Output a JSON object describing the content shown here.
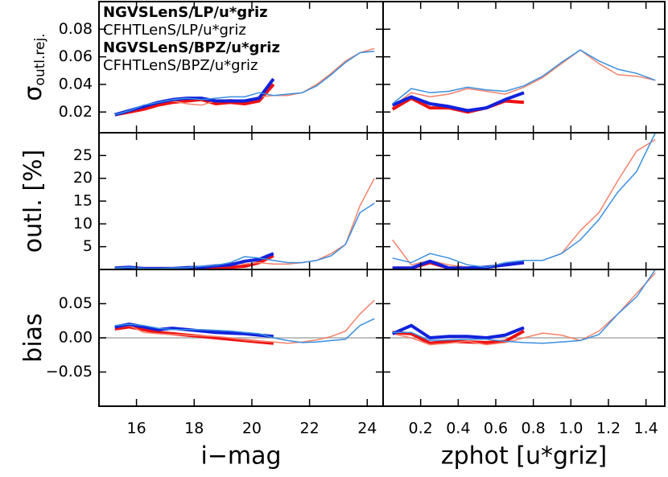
{
  "chart_data": [
    {
      "type": "line",
      "ylabel": "σ",
      "ylabel_sub": "outl.rej.",
      "legend": "upper left",
      "xlim": [
        14.7,
        24.55
      ],
      "xticks": [
        16,
        18,
        20,
        22,
        24
      ],
      "ylim": [
        0.005,
        0.1
      ],
      "yticks": [
        0.02,
        0.04,
        0.06,
        0.08
      ],
      "show_xtick_labels": false,
      "show_ytick_labels": true,
      "series": [
        {
          "name": "NGVSLenS/LP/u*griz",
          "color": "#ee1111",
          "linewidth": 4,
          "bold": true,
          "x": [
            15.25,
            15.75,
            16.25,
            16.75,
            17.25,
            17.75,
            18.25,
            18.75,
            19.25,
            19.75,
            20.25,
            20.75
          ],
          "values": [
            0.018,
            0.02,
            0.022,
            0.025,
            0.027,
            0.028,
            0.029,
            0.026,
            0.027,
            0.026,
            0.028,
            0.04
          ]
        },
        {
          "name": "CFHTLenS/LP/u*griz",
          "color": "#f4826a",
          "linewidth": 1.5,
          "bold": false,
          "x": [
            15.25,
            15.75,
            16.25,
            16.75,
            17.25,
            17.75,
            18.25,
            18.75,
            19.25,
            19.75,
            20.25,
            20.75,
            21.25,
            21.75,
            22.25,
            22.75,
            23.25,
            23.75,
            24.25
          ],
          "values": [
            0.018,
            0.021,
            0.024,
            0.027,
            0.028,
            0.026,
            0.025,
            0.028,
            0.029,
            0.028,
            0.031,
            0.032,
            0.032,
            0.034,
            0.04,
            0.048,
            0.057,
            0.063,
            0.066
          ]
        },
        {
          "name": "NGVSLenS/BPZ/u*griz",
          "color": "#1122dd",
          "linewidth": 4,
          "bold": true,
          "x": [
            15.25,
            15.75,
            16.25,
            16.75,
            17.25,
            17.75,
            18.25,
            18.75,
            19.25,
            19.75,
            20.25,
            20.75
          ],
          "values": [
            0.018,
            0.021,
            0.024,
            0.027,
            0.029,
            0.03,
            0.03,
            0.028,
            0.028,
            0.028,
            0.03,
            0.044
          ]
        },
        {
          "name": "CFHTLenS/BPZ/u*griz",
          "color": "#3a8fe0",
          "linewidth": 1.5,
          "bold": false,
          "x": [
            15.25,
            15.75,
            16.25,
            16.75,
            17.25,
            17.75,
            18.25,
            18.75,
            19.25,
            19.75,
            20.25,
            20.75,
            21.25,
            21.75,
            22.25,
            22.75,
            23.25,
            23.75,
            24.25
          ],
          "values": [
            0.018,
            0.021,
            0.025,
            0.027,
            0.029,
            0.03,
            0.029,
            0.03,
            0.031,
            0.031,
            0.034,
            0.032,
            0.033,
            0.034,
            0.039,
            0.047,
            0.056,
            0.063,
            0.064
          ]
        }
      ]
    },
    {
      "type": "line",
      "xlim": [
        0,
        1.5
      ],
      "xticks": [
        0.2,
        0.4,
        0.6,
        0.8,
        {
          "value": 1,
          "label": "1.0"
        },
        1.2,
        1.4
      ],
      "ylim": [
        0.005,
        0.1
      ],
      "yticks": [
        0.02,
        0.04,
        0.06,
        0.08
      ],
      "show_xtick_labels": false,
      "show_ytick_labels": false,
      "series": [
        {
          "color": "#ee1111",
          "linewidth": 4,
          "x": [
            0.05,
            0.15,
            0.25,
            0.35,
            0.45,
            0.55,
            0.65,
            0.75
          ],
          "values": [
            0.022,
            0.03,
            0.023,
            0.023,
            0.02,
            0.023,
            0.028,
            0.027
          ]
        },
        {
          "color": "#f4826a",
          "linewidth": 1.5,
          "x": [
            0.05,
            0.15,
            0.25,
            0.35,
            0.45,
            0.55,
            0.65,
            0.75,
            0.85,
            0.95,
            1.05,
            1.15,
            1.25,
            1.35,
            1.45
          ],
          "values": [
            0.024,
            0.034,
            0.031,
            0.033,
            0.037,
            0.035,
            0.033,
            0.038,
            0.045,
            0.055,
            0.065,
            0.055,
            0.047,
            0.046,
            0.043
          ]
        },
        {
          "color": "#1122dd",
          "linewidth": 4,
          "x": [
            0.05,
            0.15,
            0.25,
            0.35,
            0.45,
            0.55,
            0.65,
            0.75
          ],
          "values": [
            0.025,
            0.031,
            0.026,
            0.024,
            0.021,
            0.023,
            0.029,
            0.034
          ]
        },
        {
          "color": "#3a8fe0",
          "linewidth": 1.5,
          "x": [
            0.05,
            0.15,
            0.25,
            0.35,
            0.45,
            0.55,
            0.65,
            0.75,
            0.85,
            0.95,
            1.05,
            1.15,
            1.25,
            1.35,
            1.45
          ],
          "values": [
            0.026,
            0.037,
            0.034,
            0.035,
            0.038,
            0.036,
            0.035,
            0.039,
            0.046,
            0.056,
            0.065,
            0.057,
            0.051,
            0.048,
            0.043
          ]
        }
      ]
    },
    {
      "type": "line",
      "ylabel": "outl. [%]",
      "xlim": [
        14.7,
        24.55
      ],
      "xticks": [
        16,
        18,
        20,
        22,
        24
      ],
      "ylim": [
        0,
        30
      ],
      "yticks": [
        5,
        10,
        15,
        20,
        25
      ],
      "show_xtick_labels": false,
      "show_ytick_labels": true,
      "series": [
        {
          "color": "#ee1111",
          "linewidth": 4,
          "x": [
            15.25,
            15.75,
            16.25,
            16.75,
            17.25,
            17.75,
            18.25,
            18.75,
            19.25,
            19.75,
            20.25,
            20.75
          ],
          "values": [
            0.2,
            0.3,
            0.2,
            0.2,
            0.2,
            0.3,
            0.4,
            0.5,
            0.5,
            0.7,
            1.5,
            3.0
          ]
        },
        {
          "color": "#f4826a",
          "linewidth": 1.5,
          "x": [
            15.25,
            15.75,
            16.25,
            16.75,
            17.25,
            17.75,
            18.25,
            18.75,
            19.25,
            19.75,
            20.25,
            20.75,
            21.25,
            21.75,
            22.25,
            22.75,
            23.25,
            23.75,
            24.25
          ],
          "values": [
            0.3,
            0.4,
            0.2,
            0.2,
            0.3,
            0.4,
            0.5,
            0.7,
            1.5,
            1.2,
            1.5,
            1.2,
            1.2,
            1.5,
            2.0,
            3.5,
            5.5,
            14,
            20
          ]
        },
        {
          "color": "#1122dd",
          "linewidth": 4,
          "x": [
            15.25,
            15.75,
            16.25,
            16.75,
            17.25,
            17.75,
            18.25,
            18.75,
            19.25,
            19.75,
            20.25,
            20.75
          ],
          "values": [
            0.3,
            0.5,
            0.2,
            0.2,
            0.2,
            0.4,
            0.5,
            0.8,
            1.0,
            1.8,
            2.2,
            3.5
          ]
        },
        {
          "color": "#3a8fe0",
          "linewidth": 1.5,
          "x": [
            15.25,
            15.75,
            16.25,
            16.75,
            17.25,
            17.75,
            18.25,
            18.75,
            19.25,
            19.75,
            20.25,
            20.75,
            21.25,
            21.75,
            22.25,
            22.75,
            23.25,
            23.75,
            24.25
          ],
          "values": [
            0.3,
            0.5,
            0.2,
            0.2,
            0.3,
            0.4,
            0.7,
            0.9,
            1.5,
            2.8,
            2.5,
            2.0,
            1.5,
            1.5,
            2.0,
            3.0,
            5.5,
            12.5,
            14.5
          ]
        }
      ]
    },
    {
      "type": "line",
      "xlim": [
        0,
        1.5
      ],
      "xticks": [
        0.2,
        0.4,
        0.6,
        0.8,
        {
          "value": 1,
          "label": "1.0"
        },
        1.2,
        1.4
      ],
      "ylim": [
        0,
        30
      ],
      "yticks": [
        5,
        10,
        15,
        20,
        25
      ],
      "show_xtick_labels": false,
      "show_ytick_labels": false,
      "series": [
        {
          "color": "#ee1111",
          "linewidth": 4,
          "x": [
            0.05,
            0.15,
            0.25,
            0.35,
            0.45,
            0.55,
            0.65,
            0.75
          ],
          "values": [
            0.3,
            0.3,
            1.5,
            0.3,
            0.3,
            0.5,
            1.0,
            1.5
          ]
        },
        {
          "color": "#f4826a",
          "linewidth": 1.5,
          "x": [
            0.05,
            0.15,
            0.25,
            0.35,
            0.45,
            0.55,
            0.65,
            0.75,
            0.85,
            0.95,
            1.05,
            1.15,
            1.25,
            1.35,
            1.45
          ],
          "values": [
            6.5,
            1.0,
            2.0,
            1.0,
            0.5,
            0.5,
            1.0,
            2.0,
            2.0,
            3.5,
            8.5,
            12.5,
            19.5,
            26,
            28.5
          ]
        },
        {
          "color": "#1122dd",
          "linewidth": 4,
          "x": [
            0.05,
            0.15,
            0.25,
            0.35,
            0.45,
            0.55,
            0.65,
            0.75
          ],
          "values": [
            0.3,
            0.3,
            1.8,
            0.3,
            0.3,
            0.5,
            1.0,
            1.5
          ]
        },
        {
          "color": "#3a8fe0",
          "linewidth": 1.5,
          "x": [
            0.05,
            0.15,
            0.25,
            0.35,
            0.45,
            0.55,
            0.65,
            0.75,
            0.85,
            0.95,
            1.05,
            1.15,
            1.25,
            1.35,
            1.45
          ],
          "values": [
            2.5,
            1.5,
            3.5,
            2.5,
            1.0,
            0.5,
            1.5,
            2.0,
            2.0,
            3.5,
            6.5,
            11,
            17,
            21.5,
            30
          ]
        }
      ]
    },
    {
      "type": "line",
      "ylabel": "bias",
      "xlabel": "i−mag",
      "reference_line": 0,
      "xlim": [
        14.7,
        24.55
      ],
      "xticks": [
        16,
        18,
        20,
        22,
        24
      ],
      "ylim": [
        -0.1,
        0.1
      ],
      "yticks": [
        0.05,
        {
          "value": 0,
          "label": "0.00"
        },
        {
          "value": -0.05,
          "label": "−0.05"
        }
      ],
      "show_xtick_labels": true,
      "show_ytick_labels": true,
      "series": [
        {
          "color": "#ee1111",
          "linewidth": 4,
          "x": [
            15.25,
            15.75,
            16.25,
            16.75,
            17.25,
            17.75,
            18.25,
            18.75,
            19.25,
            19.75,
            20.25,
            20.75
          ],
          "values": [
            0.013,
            0.016,
            0.012,
            0.008,
            0.006,
            0.004,
            0.002,
            0.0,
            -0.002,
            -0.004,
            -0.006,
            -0.008
          ]
        },
        {
          "color": "#f4826a",
          "linewidth": 1.5,
          "x": [
            15.25,
            15.75,
            16.25,
            16.75,
            17.25,
            17.75,
            18.25,
            18.75,
            19.25,
            19.75,
            20.25,
            20.75,
            21.25,
            21.75,
            22.25,
            22.75,
            23.25,
            23.75,
            24.25
          ],
          "values": [
            0.015,
            0.018,
            0.008,
            0.006,
            0.005,
            0.004,
            0.003,
            0.002,
            0.0,
            -0.003,
            -0.005,
            -0.006,
            -0.008,
            -0.006,
            -0.003,
            0.002,
            0.01,
            0.035,
            0.055
          ]
        },
        {
          "color": "#1122dd",
          "linewidth": 4,
          "x": [
            15.25,
            15.75,
            16.25,
            16.75,
            17.25,
            17.75,
            18.25,
            18.75,
            19.25,
            19.75,
            20.25,
            20.75
          ],
          "values": [
            0.016,
            0.02,
            0.016,
            0.012,
            0.014,
            0.012,
            0.01,
            0.008,
            0.007,
            0.006,
            0.004,
            0.002
          ]
        },
        {
          "color": "#3a8fe0",
          "linewidth": 1.5,
          "x": [
            15.25,
            15.75,
            16.25,
            16.75,
            17.25,
            17.75,
            18.25,
            18.75,
            19.25,
            19.75,
            20.25,
            20.75,
            21.25,
            21.75,
            22.25,
            22.75,
            23.25,
            23.75,
            24.25
          ],
          "values": [
            0.018,
            0.02,
            0.018,
            0.014,
            0.012,
            0.012,
            0.012,
            0.011,
            0.01,
            0.008,
            0.006,
            0.0,
            -0.004,
            -0.007,
            -0.006,
            -0.004,
            -0.002,
            0.018,
            0.028
          ]
        }
      ]
    },
    {
      "type": "line",
      "xlabel": "zphot [u*griz]",
      "reference_line": 0,
      "xlim": [
        0,
        1.5
      ],
      "xticks": [
        0.2,
        0.4,
        0.6,
        0.8,
        {
          "value": 1,
          "label": "1.0"
        },
        1.2,
        1.4
      ],
      "ylim": [
        -0.1,
        0.1
      ],
      "yticks": [
        0.05,
        {
          "value": 0,
          "label": "0.00"
        },
        {
          "value": -0.05,
          "label": "−0.05"
        }
      ],
      "show_xtick_labels": true,
      "show_ytick_labels": false,
      "series": [
        {
          "color": "#ee1111",
          "linewidth": 4,
          "x": [
            0.05,
            0.15,
            0.25,
            0.35,
            0.45,
            0.55,
            0.65,
            0.75
          ],
          "values": [
            0.008,
            0.006,
            -0.008,
            -0.005,
            -0.006,
            -0.007,
            -0.005,
            0.01
          ]
        },
        {
          "color": "#f4826a",
          "linewidth": 1.5,
          "x": [
            0.05,
            0.15,
            0.25,
            0.35,
            0.45,
            0.55,
            0.65,
            0.75,
            0.85,
            0.95,
            1.05,
            1.15,
            1.25,
            1.35,
            1.45
          ],
          "values": [
            0.006,
            0.0,
            -0.01,
            -0.008,
            -0.005,
            -0.01,
            -0.007,
            0.0,
            0.007,
            0.004,
            -0.004,
            0.01,
            0.035,
            0.065,
            0.095
          ]
        },
        {
          "color": "#1122dd",
          "linewidth": 4,
          "x": [
            0.05,
            0.15,
            0.25,
            0.35,
            0.45,
            0.55,
            0.65,
            0.75
          ],
          "values": [
            0.006,
            0.018,
            0.0,
            0.002,
            0.002,
            0.0,
            0.004,
            0.015
          ]
        },
        {
          "color": "#3a8fe0",
          "linewidth": 1.5,
          "x": [
            0.05,
            0.15,
            0.25,
            0.35,
            0.45,
            0.55,
            0.65,
            0.75,
            0.85,
            0.95,
            1.05,
            1.15,
            1.25,
            1.35,
            1.45
          ],
          "values": [
            0.008,
            0.008,
            -0.004,
            -0.003,
            -0.002,
            -0.002,
            -0.005,
            -0.007,
            -0.008,
            -0.006,
            -0.004,
            0.005,
            0.035,
            0.06,
            0.1
          ]
        }
      ]
    }
  ]
}
